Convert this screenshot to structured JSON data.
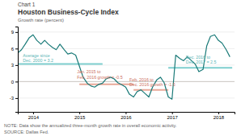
{
  "chart_data": {
    "type": "line",
    "subtitle": "Chart 1",
    "title": "Houston Business-Cycle Index",
    "ylabel": "Growth rate (percent)",
    "note": "NOTE: Data show the annualized three-month growth rate in overall economic activity.",
    "source": "SOURCE: Dallas Fed.",
    "color": "#1a7a78",
    "grid": true,
    "xlim": [
      2013.67,
      2018.35
    ],
    "xticks": [
      2014,
      2015,
      2016,
      2017,
      2018
    ],
    "ylim": [
      -5.5,
      10.0
    ],
    "yticks": [
      -3,
      0,
      3,
      6,
      9
    ],
    "x": [
      2013.67,
      2013.75,
      2013.83,
      2013.92,
      2014.0,
      2014.08,
      2014.17,
      2014.25,
      2014.33,
      2014.42,
      2014.5,
      2014.58,
      2014.67,
      2014.75,
      2014.83,
      2014.92,
      2015.0,
      2015.08,
      2015.17,
      2015.25,
      2015.33,
      2015.42,
      2015.5,
      2015.58,
      2015.67,
      2015.75,
      2015.83,
      2015.92,
      2016.0,
      2016.08,
      2016.17,
      2016.25,
      2016.33,
      2016.42,
      2016.5,
      2016.58,
      2016.67,
      2016.75,
      2016.83,
      2016.92,
      2017.0,
      2017.08,
      2017.17,
      2017.25,
      2017.33,
      2017.42,
      2017.5,
      2017.58,
      2017.67,
      2017.75,
      2017.83,
      2017.92,
      2018.0,
      2018.08,
      2018.17,
      2018.25
    ],
    "values": [
      5.2,
      5.8,
      6.8,
      8.0,
      8.5,
      7.5,
      6.8,
      7.5,
      6.8,
      6.2,
      5.8,
      6.8,
      5.8,
      5.0,
      5.2,
      4.8,
      2.8,
      0.8,
      -0.3,
      -0.8,
      -1.0,
      -0.5,
      -0.3,
      0.5,
      0.8,
      0.5,
      -0.2,
      -0.6,
      -1.0,
      -2.3,
      -2.8,
      -1.8,
      -1.5,
      -2.2,
      -2.8,
      -1.0,
      0.3,
      0.8,
      -0.2,
      -2.8,
      -3.2,
      4.8,
      4.2,
      3.8,
      4.5,
      3.8,
      3.2,
      1.8,
      2.2,
      6.5,
      8.2,
      8.5,
      7.5,
      7.0,
      5.8,
      4.5
    ],
    "reference_lines": [
      {
        "y": 0,
        "color": "#c8c5c0"
      },
      {
        "x": [
          2013.67,
          2015.5
        ],
        "y": 3.2,
        "color": "#7ecece"
      },
      {
        "x": [
          2015.0,
          2016.17
        ],
        "y": -0.5,
        "color": "#e8a898"
      },
      {
        "x": [
          2016.17,
          2016.92
        ],
        "y": -1.5,
        "color": "#e8a898"
      },
      {
        "x": [
          2016.92,
          2018.3
        ],
        "y": 2.5,
        "color": "#7ecece"
      }
    ],
    "annotations": [
      {
        "text": "Average since\nDec. 2000 = 3.2",
        "x": 2013.78,
        "y": 3.35,
        "color": "#5ab5b5"
      },
      {
        "text": "Jan. 2015 to\nFeb. 2016 growth = -0.5",
        "x": 2014.95,
        "y": 0.35,
        "color": "#cc7060"
      },
      {
        "text": "Feb. 2016 to\nDec. 2016 growth = -1.5",
        "x": 2016.08,
        "y": -1.0,
        "color": "#cc7060"
      },
      {
        "text": "Dec. 2016 to\nDec. 2017 = 2.5",
        "x": 2017.3,
        "y": 3.1,
        "color": "#5ab5b5"
      }
    ]
  }
}
